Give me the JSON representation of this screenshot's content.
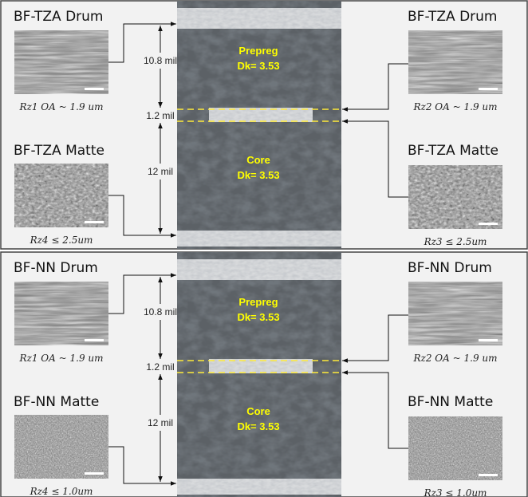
{
  "panels": [
    {
      "left_top": {
        "title": "BF-TZA Drum",
        "caption": "Rz1 OA ~ 1.9 um"
      },
      "left_bottom": {
        "title": "BF-TZA Matte",
        "caption": "Rz4 ≤ 2.5um"
      },
      "right_top": {
        "title": "BF-TZA Drum",
        "caption": "Rz2 OA ~ 1.9 um"
      },
      "right_bottom": {
        "title": "BF-TZA Matte",
        "caption": "Rz3 ≤ 2.5um"
      },
      "dimensions": [
        "10.8 mil",
        "1.2 mil",
        "12 mil"
      ],
      "layers": [
        {
          "name": "Prepreg",
          "dk": "Dk= 3.53"
        },
        {
          "name": "Core",
          "dk": "Dk= 3.53"
        }
      ]
    },
    {
      "left_top": {
        "title": "BF-NN Drum",
        "caption": "Rz1 OA ~ 1.9 um"
      },
      "left_bottom": {
        "title": "BF-NN Matte",
        "caption": "Rz4 ≤ 1.0um"
      },
      "right_top": {
        "title": "BF-NN Drum",
        "caption": "Rz2 OA ~ 1.9 um"
      },
      "right_bottom": {
        "title": "BF-NN Matte",
        "caption": "Rz3 ≤ 1.0um"
      },
      "dimensions": [
        "10.8 mil",
        "1.2 mil",
        "12 mil"
      ],
      "layers": [
        {
          "name": "Prepreg",
          "dk": "Dk= 3.53"
        },
        {
          "name": "Core",
          "dk": "Dk= 3.53"
        }
      ]
    }
  ]
}
